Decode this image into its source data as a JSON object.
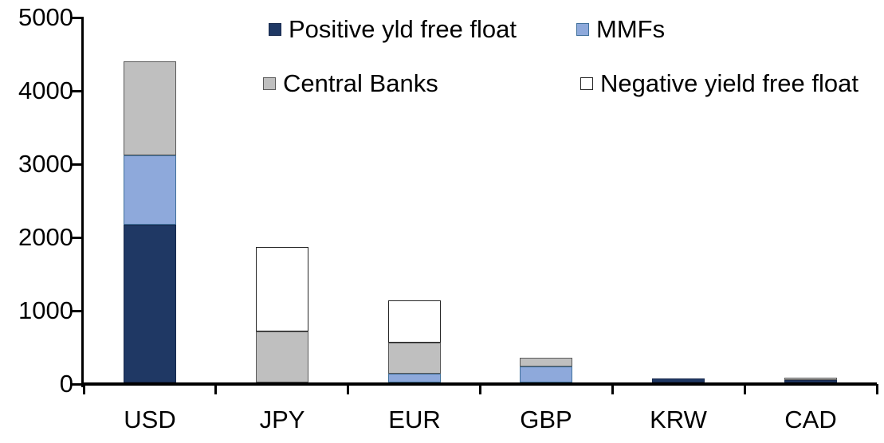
{
  "chart_data": {
    "type": "bar",
    "stacked": true,
    "title": "",
    "xlabel": "",
    "ylabel": "",
    "categories": [
      "USD",
      "JPY",
      "EUR",
      "GBP",
      "KRW",
      "CAD"
    ],
    "series": [
      {
        "name": "Positive yld free float",
        "color": "#1F3864",
        "border": "#17294D",
        "values": [
          2150,
          0,
          0,
          0,
          50,
          35
        ]
      },
      {
        "name": "MMFs",
        "color": "#8EA9DB",
        "border": "#41719C",
        "values": [
          950,
          0,
          120,
          220,
          0,
          0
        ]
      },
      {
        "name": "Central Banks",
        "color": "#BFBFBF",
        "border": "#595959",
        "values": [
          1280,
          700,
          425,
          115,
          0,
          35
        ]
      },
      {
        "name": "Negative yield free float",
        "color": "#FFFFFF",
        "border": "#262626",
        "values": [
          0,
          1150,
          575,
          0,
          0,
          0
        ]
      }
    ],
    "totals_by_category": [
      4380,
      1850,
      1120,
      335,
      50,
      70
    ],
    "ylim": [
      0,
      5000
    ],
    "yticks": [
      0,
      1000,
      2000,
      3000,
      4000,
      5000
    ],
    "ytick_labels": [
      "0",
      "1000",
      "2000",
      "3000",
      "4000",
      "5000"
    ],
    "grid": false,
    "legend_position": "top",
    "legend_rows": [
      [
        "Positive yld free float",
        "MMFs"
      ],
      [
        "Central Banks",
        "Negative yield free float"
      ]
    ]
  },
  "colors": {
    "axis": "#000000",
    "background": "#FFFFFF",
    "positive_yld_free_float": "#1F3864",
    "mmfs": "#8EA9DB",
    "central_banks": "#BFBFBF",
    "negative_yield_free_float": "#FFFFFF"
  }
}
